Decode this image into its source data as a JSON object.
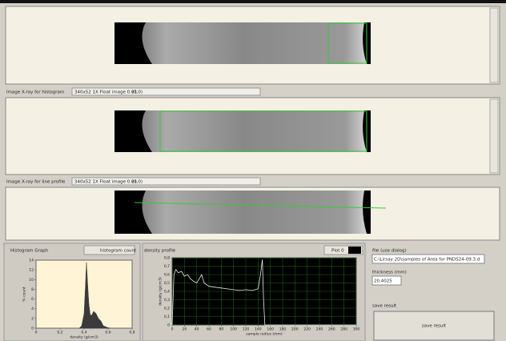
{
  "panels": [
    {
      "label": "Image X-ray for histogram",
      "info": "340x52 1X Float image 0.01",
      "coords": "(0,0)"
    },
    {
      "label": "Image X-ray for line profile",
      "info": "340x52 1X Float image 0.01",
      "coords": "(0,0)"
    }
  ],
  "histogram": {
    "type": "area",
    "title": "Histogram Graph",
    "legend": "histogram count",
    "ylabel": "% count",
    "xlabel": "density (g/cm3)",
    "x": [
      0.36,
      0.38,
      0.4,
      0.41,
      0.42,
      0.43,
      0.44,
      0.45,
      0.46,
      0.48,
      0.5,
      0.52,
      0.54,
      0.56,
      0.58,
      0.6,
      0.62
    ],
    "values": [
      0,
      0.5,
      3,
      8,
      13.5,
      9,
      5,
      3,
      2.5,
      3.5,
      3,
      2,
      1.5,
      0.5,
      0.3,
      0.1,
      0
    ],
    "xlim": [
      0,
      0.8
    ],
    "ylim": [
      0,
      14
    ],
    "xticks": [
      0,
      {
        "value": 0.2,
        "label": "0,2"
      },
      {
        "value": 0.4,
        "label": "0,4"
      },
      {
        "value": 0.6,
        "label": "0,6"
      },
      {
        "value": 0.8,
        "label": "0,8"
      }
    ],
    "yticks": [
      0,
      2,
      4,
      6,
      8,
      10,
      12,
      14
    ],
    "color": "#3a3a3a",
    "background": "#fff4d6",
    "grid": false
  },
  "profile": {
    "type": "line",
    "title": "density profile",
    "legend": "Plot 0",
    "ylabel": "density (g/cm3)",
    "xlabel": "sample radius (mm)",
    "x": [
      0,
      3,
      6,
      10,
      15,
      20,
      25,
      30,
      35,
      40,
      45,
      48,
      52,
      60,
      70,
      80,
      90,
      100,
      110,
      120,
      130,
      140,
      144,
      147,
      149,
      151,
      160,
      200,
      250,
      300
    ],
    "values": [
      0,
      0.6,
      0.66,
      0.62,
      0.64,
      0.58,
      0.6,
      0.55,
      0.52,
      0.5,
      0.56,
      0.6,
      0.5,
      0.46,
      0.45,
      0.44,
      0.43,
      0.42,
      0.41,
      0.42,
      0.41,
      0.43,
      0.6,
      0.78,
      0.3,
      0,
      0,
      0,
      0,
      0
    ],
    "xlim": [
      0,
      300
    ],
    "ylim": [
      0,
      0.8
    ],
    "xticks": [
      0,
      20,
      40,
      60,
      80,
      100,
      120,
      140,
      160,
      180,
      200,
      220,
      240,
      260,
      280,
      300
    ],
    "yticks": [
      0,
      {
        "value": 0.1,
        "label": "0,1"
      },
      {
        "value": 0.2,
        "label": "0,2"
      },
      {
        "value": 0.3,
        "label": "0,3"
      },
      {
        "value": 0.4,
        "label": "0,4"
      },
      {
        "value": 0.5,
        "label": "0,5"
      },
      {
        "value": 0.6,
        "label": "0,6"
      },
      {
        "value": 0.7,
        "label": "0,7"
      },
      {
        "value": 0.8,
        "label": "0,8"
      }
    ],
    "color": "#e8e8e8",
    "background": "#000000",
    "grid": true
  },
  "file": {
    "label": "file (use dialog)",
    "path": "C:\\Lirsay 2D\\samples of Area for PNDS24-09.3.d"
  },
  "thickness": {
    "label": "thickness (mm)",
    "value": "20,4025"
  },
  "save": {
    "label": "save result",
    "button": "save result"
  }
}
